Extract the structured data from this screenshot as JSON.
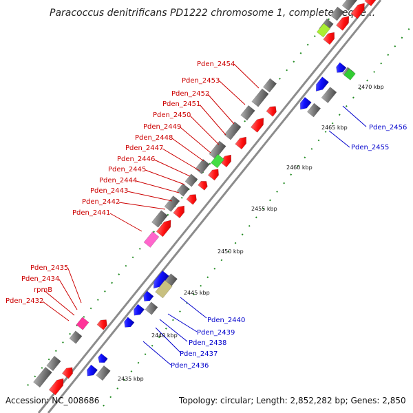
{
  "title": "Paracoccus denitrificans PD1222 chromosome 1, complete seque...",
  "footer": {
    "accession": "Accession: NC_008686",
    "summary": "Topology: circular; Length: 2,852,282 bp; Genes: 2,850"
  },
  "ticks": [
    "2435 kbp",
    "2440 kbp",
    "2445 kbp",
    "2450 kbp",
    "2455 kbp",
    "2460 kbp",
    "2465 kbp",
    "2470 kbp"
  ],
  "labels_left": [
    "Pden_2454",
    "Pden_2453",
    "Pden_2452",
    "Pden_2451",
    "Pden_2450",
    "Pden_2449",
    "Pden_2448",
    "Pden_2447",
    "Pden_2446",
    "Pden_2445",
    "Pden_2444",
    "Pden_2443",
    "Pden_2442",
    "Pden_2441",
    "Pden_2435",
    "Pden_2434",
    "rpmB",
    "Pden_2432"
  ],
  "labels_right": [
    "Pden_2456",
    "Pden_2455",
    "Pden_2440",
    "Pden_2439",
    "Pden_2438",
    "Pden_2437",
    "Pden_2436"
  ],
  "colors": {
    "forward": "#ff1a1a",
    "reverse": "#1a1aff",
    "backbone": "#8c8c8c",
    "tick": "#228b22",
    "label_forward": "#cc0000",
    "label_reverse": "#0000cc"
  }
}
